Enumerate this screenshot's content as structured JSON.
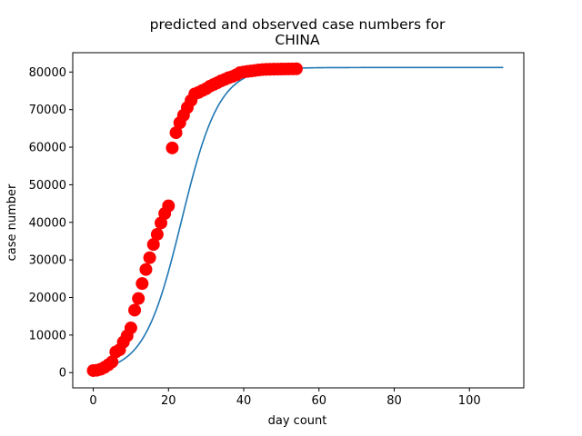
{
  "chart_data": {
    "type": "scatter",
    "title_lines": [
      "predicted and observed case numbers for",
      "CHINA"
    ],
    "xlabel": "day count",
    "ylabel": "case number",
    "xlim": [
      -5.45,
      114.45
    ],
    "ylim": [
      -4050,
      85150
    ],
    "xticks": [
      0,
      20,
      40,
      60,
      80,
      100
    ],
    "yticks": [
      0,
      10000,
      20000,
      30000,
      40000,
      50000,
      60000,
      70000,
      80000
    ],
    "grid": false,
    "legend": "none",
    "series": [
      {
        "kind": "scatter",
        "color": "#ff0000",
        "x": [
          0,
          1,
          2,
          3,
          4,
          5,
          6,
          7,
          8,
          9,
          10,
          11,
          12,
          13,
          14,
          15,
          16,
          17,
          18,
          19,
          20,
          21,
          22,
          23,
          24,
          25,
          26,
          27,
          28,
          29,
          30,
          31,
          32,
          33,
          34,
          35,
          36,
          37,
          38,
          39,
          40,
          41,
          42,
          43,
          44,
          45,
          46,
          47,
          48,
          49,
          50,
          51,
          52,
          53,
          54
        ],
        "y": [
          548,
          643,
          920,
          1406,
          2075,
          2877,
          5509,
          6087,
          8141,
          9802,
          11891,
          16630,
          19716,
          23707,
          27440,
          30587,
          34110,
          36814,
          39829,
          42354,
          44386,
          59804,
          63851,
          66492,
          68500,
          70548,
          72436,
          74185,
          74576,
          75077,
          75550,
          76212,
          76677,
          77150,
          77658,
          78064,
          78497,
          78824,
          79251,
          79824,
          80026,
          80151,
          80270,
          80409,
          80552,
          80651,
          80695,
          80735,
          80754,
          80778,
          80793,
          80813,
          80824,
          80844,
          80860
        ]
      },
      {
        "kind": "line",
        "color": "#1f77b4",
        "x_range": [
          0,
          109
        ],
        "model": "logistic",
        "K": 81200,
        "r": 0.2,
        "t0": 23.5
      }
    ]
  }
}
